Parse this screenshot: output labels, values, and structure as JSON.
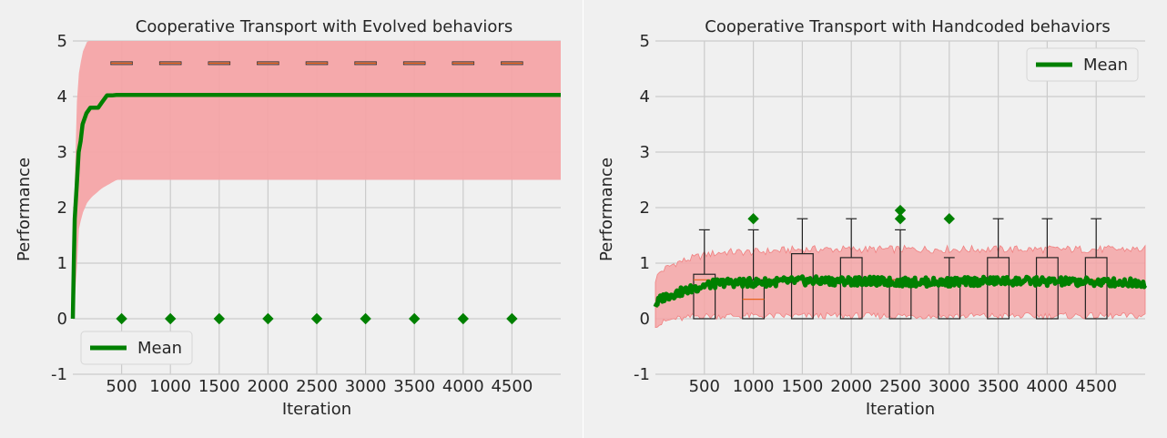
{
  "chart_data": [
    {
      "type": "line",
      "title": "Cooperative Transport with Evolved behaviors",
      "xlabel": "Iteration",
      "ylabel": "Performance",
      "xlim": [
        0,
        5000
      ],
      "ylim": [
        -1,
        5
      ],
      "xticks": [
        500,
        1000,
        1500,
        2000,
        2500,
        3000,
        3500,
        4000,
        4500
      ],
      "yticks": [
        -1,
        0,
        1,
        2,
        3,
        4,
        5
      ],
      "grid": true,
      "legend": {
        "position": "bottom-left",
        "entries": [
          "Mean"
        ]
      },
      "series": [
        {
          "name": "Mean",
          "color": "#008000",
          "x": [
            0,
            10,
            20,
            40,
            60,
            80,
            100,
            140,
            180,
            220,
            260,
            300,
            350,
            400,
            450,
            500,
            5000
          ],
          "y": [
            0,
            1.0,
            1.8,
            2.4,
            3.0,
            3.2,
            3.5,
            3.7,
            3.8,
            3.8,
            3.8,
            3.9,
            4.02,
            4.02,
            4.03,
            4.03,
            4.03
          ]
        }
      ],
      "band": {
        "color": "#f4a4a6",
        "x": [
          0,
          30,
          60,
          100,
          150,
          200,
          300,
          400,
          450,
          500,
          5000
        ],
        "lower": [
          0,
          0.5,
          1.6,
          1.9,
          2.1,
          2.2,
          2.35,
          2.45,
          2.5,
          2.5,
          2.5
        ],
        "upper": [
          0,
          3.6,
          4.4,
          4.8,
          5.0,
          5.0,
          5.0,
          5.0,
          5.0,
          5.0,
          5.0
        ]
      },
      "boxes": {
        "x": [
          500,
          1000,
          1500,
          2000,
          2500,
          3000,
          3500,
          4000,
          4500
        ],
        "q1": [
          4.6,
          4.6,
          4.6,
          4.6,
          4.6,
          4.6,
          4.6,
          4.6,
          4.6
        ],
        "median": [
          4.6,
          4.6,
          4.6,
          4.6,
          4.6,
          4.6,
          4.6,
          4.6,
          4.6
        ],
        "q3": [
          4.6,
          4.6,
          4.6,
          4.6,
          4.6,
          4.6,
          4.6,
          4.6,
          4.6
        ],
        "whisker_low": [
          4.6,
          4.6,
          4.6,
          4.6,
          4.6,
          4.6,
          4.6,
          4.6,
          4.6
        ],
        "whisker_high": [
          4.6,
          4.6,
          4.6,
          4.6,
          4.6,
          4.6,
          4.6,
          4.6,
          4.6
        ]
      },
      "outliers": [
        {
          "x": 500,
          "y": 0
        },
        {
          "x": 1000,
          "y": 0
        },
        {
          "x": 1500,
          "y": 0
        },
        {
          "x": 2000,
          "y": 0
        },
        {
          "x": 2500,
          "y": 0
        },
        {
          "x": 3000,
          "y": 0
        },
        {
          "x": 3500,
          "y": 0
        },
        {
          "x": 4000,
          "y": 0
        },
        {
          "x": 4500,
          "y": 0
        }
      ]
    },
    {
      "type": "line",
      "title": "Cooperative Transport with Handcoded behaviors",
      "xlabel": "Iteration",
      "ylabel": "Performance",
      "xlim": [
        0,
        5000
      ],
      "ylim": [
        -1,
        5
      ],
      "xticks": [
        500,
        1000,
        1500,
        2000,
        2500,
        3000,
        3500,
        4000,
        4500
      ],
      "yticks": [
        -1,
        0,
        1,
        2,
        3,
        4,
        5
      ],
      "grid": true,
      "legend": {
        "position": "top-right",
        "entries": [
          "Mean"
        ]
      },
      "series": [
        {
          "name": "Mean",
          "color": "#008000",
          "x": [
            0,
            50,
            100,
            200,
            300,
            400,
            500,
            700,
            1000,
            1500,
            2000,
            2500,
            3000,
            3500,
            4000,
            4500,
            5000
          ],
          "y": [
            0.25,
            0.35,
            0.4,
            0.45,
            0.5,
            0.55,
            0.6,
            0.65,
            0.65,
            0.68,
            0.68,
            0.66,
            0.66,
            0.68,
            0.67,
            0.66,
            0.65
          ]
        }
      ],
      "band": {
        "color": "#f4a4a6",
        "x": [
          0,
          50,
          100,
          200,
          300,
          400,
          500,
          700,
          1000,
          1500,
          2000,
          2500,
          3000,
          3500,
          4000,
          4500,
          5000
        ],
        "lower": [
          -0.1,
          -0.1,
          -0.05,
          0.0,
          0.0,
          0.05,
          0.05,
          0.05,
          0.05,
          0.05,
          0.05,
          0.05,
          0.05,
          0.05,
          0.05,
          0.05,
          0.05
        ],
        "upper": [
          0.7,
          0.85,
          0.9,
          1.0,
          1.05,
          1.1,
          1.15,
          1.2,
          1.2,
          1.25,
          1.25,
          1.25,
          1.25,
          1.25,
          1.25,
          1.25,
          1.25
        ]
      },
      "boxes": {
        "x": [
          500,
          1000,
          1500,
          2000,
          2500,
          3000,
          3500,
          4000,
          4500
        ],
        "q1": [
          0,
          0,
          0,
          0,
          0,
          0,
          0,
          0,
          0
        ],
        "median": [
          0.7,
          0.35,
          0.7,
          0.7,
          0.7,
          0.7,
          0.7,
          0.7,
          0.7
        ],
        "q3": [
          0.8,
          0.7,
          1.17,
          1.1,
          0.7,
          0.7,
          1.1,
          1.1,
          1.1
        ],
        "whisker_low": [
          0,
          0,
          0,
          0,
          0,
          0,
          0,
          0,
          0
        ],
        "whisker_high": [
          1.6,
          1.6,
          1.8,
          1.8,
          1.6,
          1.1,
          1.8,
          1.8,
          1.8
        ]
      },
      "outliers": [
        {
          "x": 1000,
          "y": 1.8
        },
        {
          "x": 2500,
          "y": 1.8
        },
        {
          "x": 2500,
          "y": 1.95
        },
        {
          "x": 3000,
          "y": 1.8
        }
      ]
    }
  ]
}
